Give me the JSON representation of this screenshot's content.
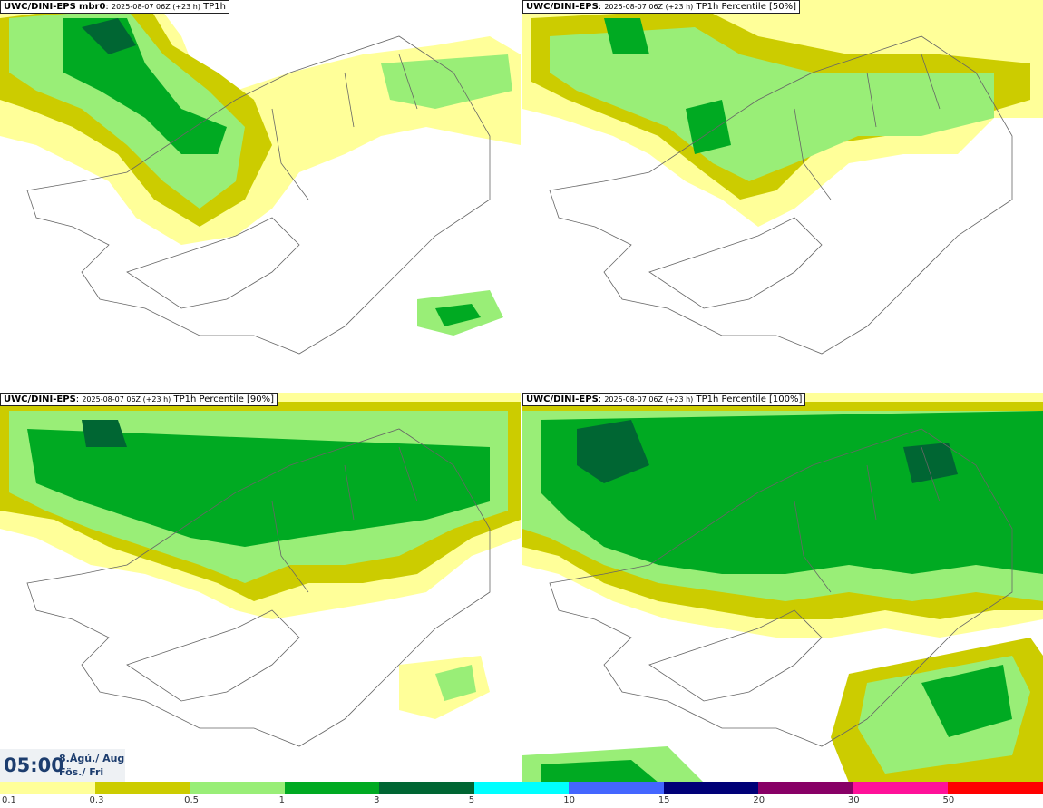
{
  "panels": [
    {
      "id": "tl",
      "model": "UWC/DINI-EPS",
      "member": "mbr0",
      "run": "2025-08-07 06Z (+23 h)",
      "field": "TP1h"
    },
    {
      "id": "tr",
      "model": "UWC/DINI-EPS",
      "member": "",
      "run": "2025-08-07 06Z (+23 h)",
      "field": "TP1h Percentile [50%]"
    },
    {
      "id": "bl",
      "model": "UWC/DINI-EPS",
      "member": "",
      "run": "2025-08-07 06Z (+23 h)",
      "field": "TP1h Percentile [90%]"
    },
    {
      "id": "br",
      "model": "UWC/DINI-EPS",
      "member": "",
      "run": "2025-08-07 06Z (+23 h)",
      "field": "TP1h Percentile [100%]"
    }
  ],
  "valid_time": {
    "time": "05:00",
    "date_line1": "8.Ágú./ Aug",
    "date_line2": "Fös./ Fri"
  },
  "legend": {
    "ticks": [
      "0.1",
      "0.3",
      "0.5",
      "1",
      "3",
      "5",
      "10",
      "15",
      "20",
      "30",
      "50"
    ],
    "colors": [
      "#ffff99",
      "#cccc00",
      "#99ee77",
      "#00aa22",
      "#006633",
      "#00ffff",
      "#4466ff",
      "#000077",
      "#880066",
      "#ff1199",
      "#ff0000"
    ]
  }
}
